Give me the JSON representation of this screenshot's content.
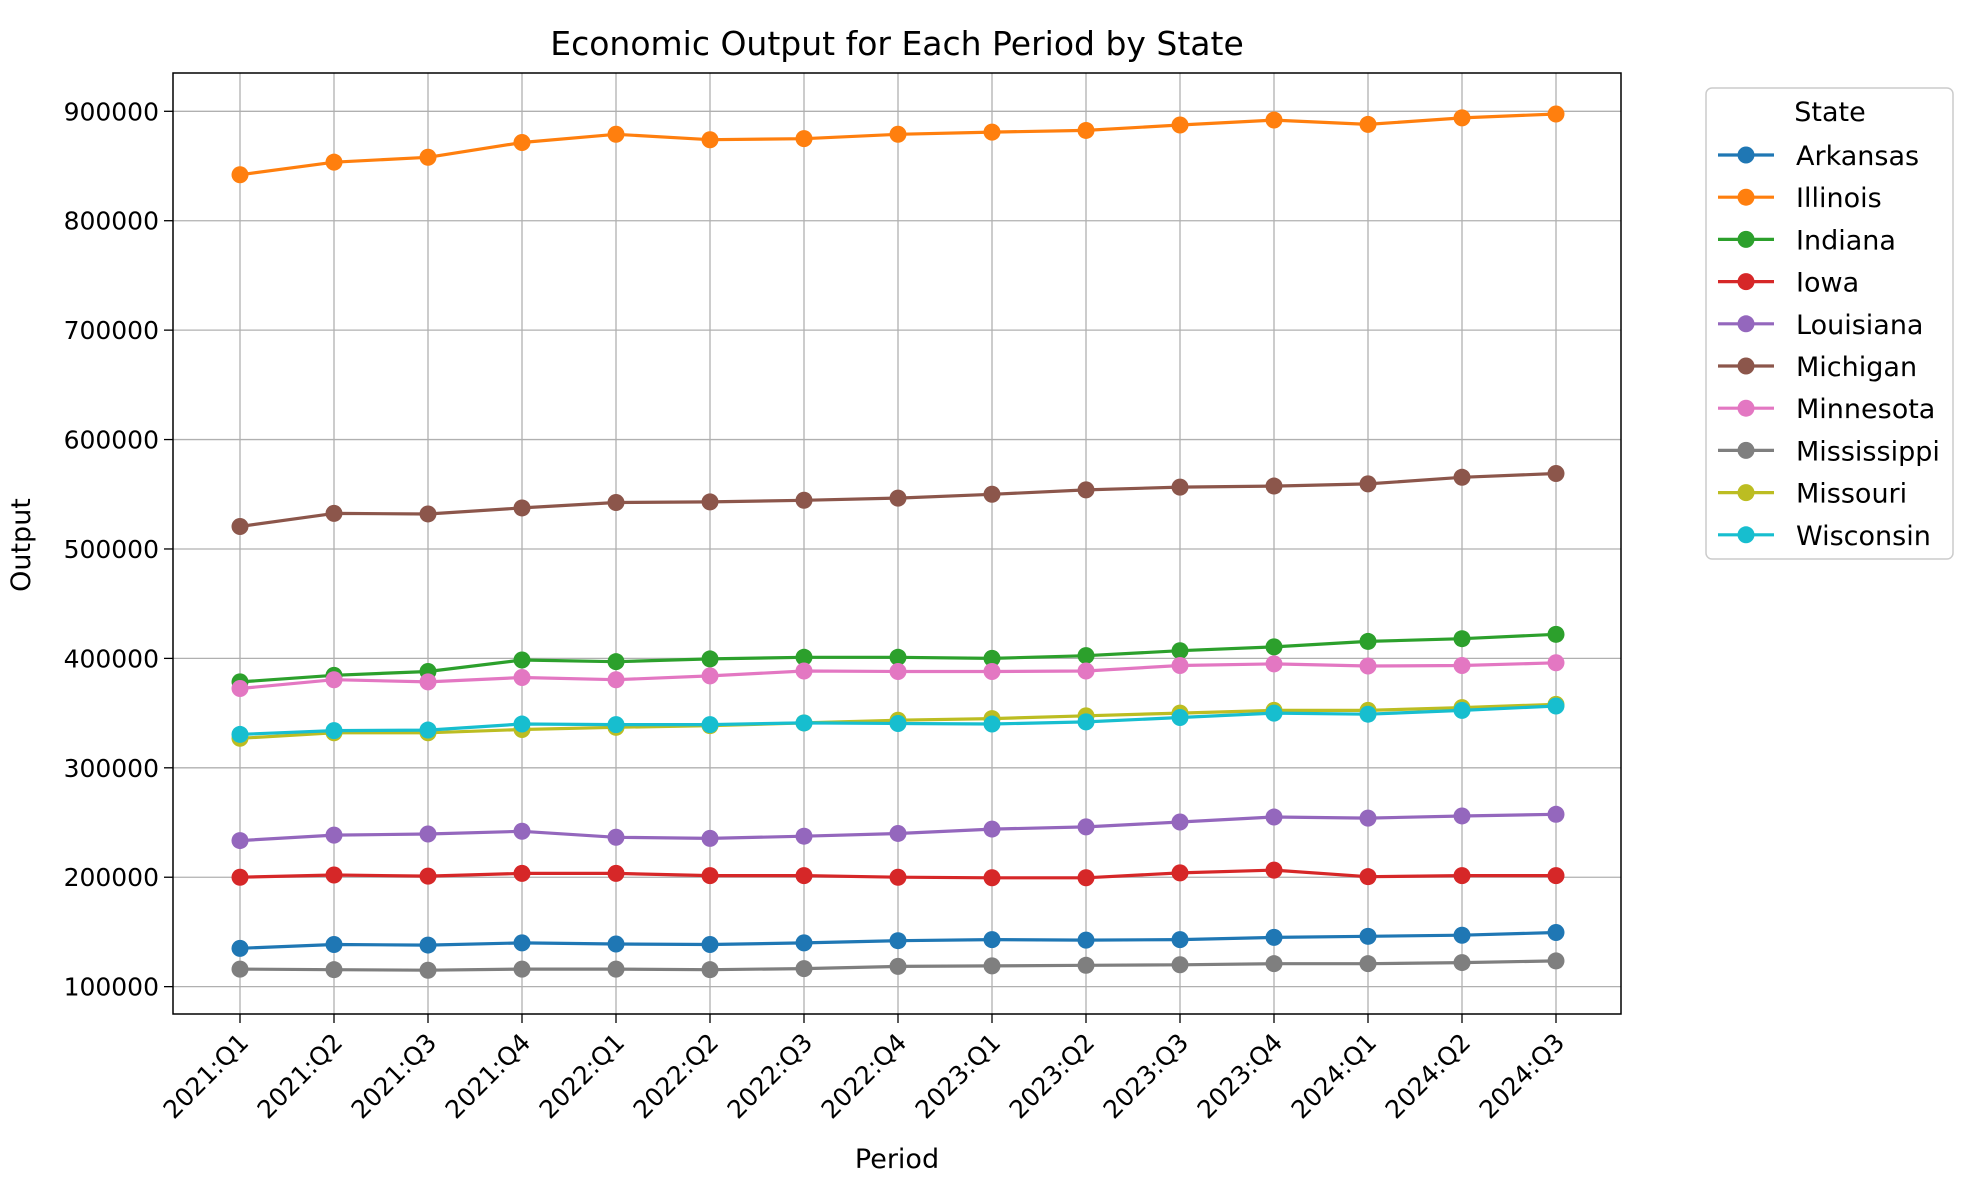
{
  "chart_data": {
    "type": "line",
    "title": "Economic Output for Each Period by State",
    "xlabel": "Period",
    "ylabel": "Output",
    "categories": [
      "2021:Q1",
      "2021:Q2",
      "2021:Q3",
      "2021:Q4",
      "2022:Q1",
      "2022:Q2",
      "2022:Q3",
      "2022:Q4",
      "2023:Q1",
      "2023:Q2",
      "2023:Q3",
      "2023:Q4",
      "2024:Q1",
      "2024:Q2",
      "2024:Q3"
    ],
    "ylim": [
      75000,
      935000
    ],
    "yticks": [
      100000,
      200000,
      300000,
      400000,
      500000,
      600000,
      700000,
      800000,
      900000
    ],
    "grid": true,
    "legend": {
      "title": "State",
      "placement": "outside-right-top"
    },
    "series": [
      {
        "name": "Arkansas",
        "color": "#1f77b4",
        "values": [
          135000,
          138500,
          138000,
          140000,
          139000,
          138500,
          140000,
          142000,
          143000,
          142500,
          143000,
          145000,
          146000,
          147000,
          149500
        ]
      },
      {
        "name": "Illinois",
        "color": "#ff7f0e",
        "values": [
          842000,
          853500,
          858000,
          871500,
          879000,
          874000,
          875000,
          879000,
          881000,
          882500,
          887500,
          892000,
          888000,
          894000,
          897500
        ]
      },
      {
        "name": "Indiana",
        "color": "#2ca02c",
        "values": [
          378500,
          384500,
          388000,
          398500,
          397000,
          399500,
          401000,
          401000,
          400000,
          402500,
          407000,
          410500,
          415500,
          418000,
          422000
        ]
      },
      {
        "name": "Iowa",
        "color": "#d62728",
        "values": [
          200000,
          202000,
          201000,
          203500,
          203500,
          201500,
          201500,
          200000,
          199500,
          199500,
          204000,
          206500,
          200500,
          201500,
          201500
        ]
      },
      {
        "name": "Louisiana",
        "color": "#9467bd",
        "values": [
          233500,
          238500,
          239500,
          242000,
          236500,
          235500,
          237500,
          240000,
          244000,
          246000,
          250500,
          255000,
          254000,
          256000,
          257500
        ]
      },
      {
        "name": "Michigan",
        "color": "#8c564b",
        "values": [
          520500,
          532500,
          532000,
          537500,
          542500,
          543000,
          544500,
          546500,
          550000,
          554000,
          556500,
          557500,
          559500,
          565500,
          569000
        ]
      },
      {
        "name": "Minnesota",
        "color": "#e377c2",
        "values": [
          372500,
          380500,
          378500,
          382500,
          380500,
          384000,
          388500,
          388000,
          388000,
          388500,
          393500,
          395000,
          393000,
          393500,
          396000
        ]
      },
      {
        "name": "Mississippi",
        "color": "#7f7f7f",
        "values": [
          116000,
          115500,
          115000,
          116000,
          116000,
          115500,
          116500,
          118500,
          119000,
          119500,
          120000,
          121000,
          121000,
          122000,
          123500
        ]
      },
      {
        "name": "Missouri",
        "color": "#bcbd22",
        "values": [
          327000,
          332000,
          332000,
          335000,
          337000,
          338500,
          341000,
          343500,
          345000,
          347500,
          350000,
          352500,
          352500,
          355000,
          358000
        ]
      },
      {
        "name": "Wisconsin",
        "color": "#17becf",
        "values": [
          330500,
          334000,
          334500,
          340000,
          339500,
          339500,
          341000,
          340500,
          340000,
          342000,
          346000,
          350000,
          349000,
          352500,
          356500
        ]
      }
    ]
  }
}
